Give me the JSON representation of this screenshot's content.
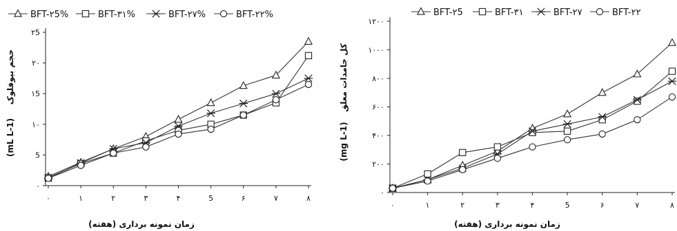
{
  "chart_data": [
    {
      "type": "line",
      "title": "",
      "xlabel": "زمان نمونه برداری (هفته)",
      "ylabel": "حجم بیوفلوک (mL L-1)",
      "ylabel_main": "حجم بیوفلوک",
      "ylabel_unit": "(mL L-1)",
      "categories": [
        "٠",
        "١",
        "٢",
        "٣",
        "۴",
        "5",
        "۶",
        "٧",
        "٨"
      ],
      "x": [
        0,
        1,
        2,
        3,
        4,
        5,
        6,
        7,
        8
      ],
      "y_ticks": [
        0,
        5,
        10,
        15,
        20,
        25
      ],
      "y_tick_labels": [
        "٠",
        "5",
        "١٠",
        "١5",
        "٢٠",
        "٢5"
      ],
      "ylim": [
        0,
        25
      ],
      "legend_position": "top",
      "series": [
        {
          "name": "BFT-٢5%",
          "marker": "triangle",
          "values": [
            1.5,
            3.8,
            6.0,
            8.0,
            10.8,
            13.5,
            16.3,
            18.0,
            23.5
          ]
        },
        {
          "name": "BFT-٣١%",
          "marker": "square",
          "values": [
            1.3,
            3.6,
            5.3,
            7.3,
            9.0,
            10.0,
            11.5,
            13.5,
            21.2
          ]
        },
        {
          "name": "BFT-٢٧%",
          "marker": "star",
          "values": [
            1.2,
            3.7,
            6.0,
            7.0,
            9.7,
            11.8,
            13.4,
            15.0,
            17.5
          ]
        },
        {
          "name": "BFT-٢٢%",
          "marker": "circle",
          "values": [
            1.2,
            3.3,
            5.3,
            6.3,
            8.4,
            9.2,
            11.5,
            14.0,
            16.5
          ]
        }
      ]
    },
    {
      "type": "line",
      "title": "",
      "xlabel": "زمان نمونه برداری (هفته)",
      "ylabel": "کل جامدات معلق (mg L-1)",
      "ylabel_main": "کل جامدات معلق",
      "ylabel_unit": "(mg L-1)",
      "categories": [
        "٠",
        "١",
        "٢",
        "٣",
        "۴",
        "5",
        "۶",
        "٧",
        "٨"
      ],
      "x": [
        0,
        1,
        2,
        3,
        4,
        5,
        6,
        7,
        8
      ],
      "y_ticks": [
        0,
        200,
        400,
        600,
        800,
        1000,
        1200
      ],
      "y_tick_labels": [
        "٠",
        "٢٠٠",
        "۴٠٠",
        "۶٠٠",
        "٨٠٠",
        "١٠٠٠",
        "١٢٠٠"
      ],
      "ylim": [
        0,
        1200
      ],
      "legend_position": "top",
      "series": [
        {
          "name": "BFT-٢5",
          "marker": "triangle",
          "values": [
            30,
            90,
            190,
            290,
            450,
            550,
            700,
            830,
            1050
          ]
        },
        {
          "name": "BFT-٣١",
          "marker": "square",
          "values": [
            30,
            130,
            280,
            320,
            420,
            430,
            510,
            640,
            850
          ]
        },
        {
          "name": "BFT-٢٧",
          "marker": "star",
          "values": [
            30,
            90,
            170,
            270,
            430,
            480,
            530,
            650,
            780
          ]
        },
        {
          "name": "BFT-٢٢",
          "marker": "circle",
          "values": [
            30,
            80,
            160,
            240,
            320,
            370,
            410,
            510,
            670
          ]
        }
      ]
    }
  ]
}
